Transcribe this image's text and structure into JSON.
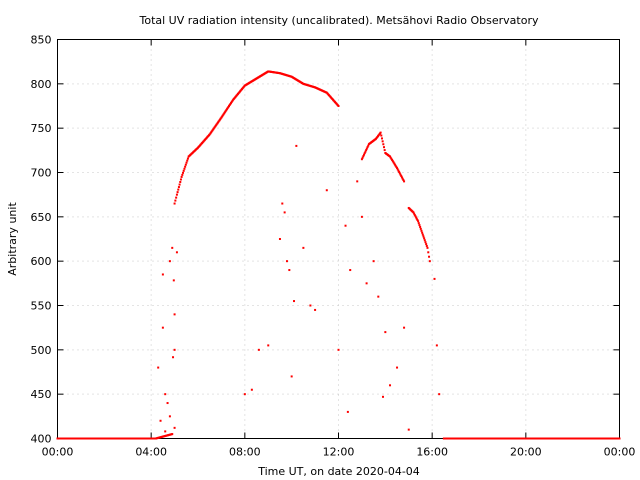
{
  "chart_data": {
    "type": "scatter",
    "title": "Total UV radiation intensity (uncalibrated). Metsähovi Radio Observatory",
    "xlabel": "Time UT, on date 2020-04-04",
    "ylabel": "Arbitrary unit",
    "x_unit": "hours UT",
    "xlim": [
      0,
      24
    ],
    "ylim": [
      400,
      850
    ],
    "x_ticks": [
      0,
      4,
      8,
      12,
      16,
      20,
      24
    ],
    "x_tick_labels": [
      "00:00",
      "04:00",
      "08:00",
      "12:00",
      "16:00",
      "20:00",
      "00:00"
    ],
    "y_ticks": [
      400,
      450,
      500,
      550,
      600,
      650,
      700,
      750,
      800,
      850
    ],
    "y_tick_labels": [
      "400",
      "450",
      "500",
      "550",
      "600",
      "650",
      "700",
      "750",
      "800",
      "850"
    ],
    "grid": true,
    "legend": "none",
    "series_color": "#ff0000",
    "main_curve": {
      "x": [
        0.0,
        4.2,
        4.9,
        5.0,
        5.1,
        5.3,
        5.6,
        6.0,
        6.5,
        7.0,
        7.5,
        8.0,
        8.5,
        9.0,
        9.5,
        10.0,
        10.5,
        11.0,
        11.5,
        12.0
      ],
      "y": [
        400,
        400,
        405,
        665,
        675,
        695,
        718,
        728,
        743,
        762,
        782,
        798,
        806,
        814,
        812,
        808,
        800,
        796,
        790,
        775
      ]
    },
    "segment_2": {
      "x": [
        13.0,
        13.3,
        13.6,
        13.8,
        14.0,
        14.2,
        14.5,
        14.8
      ],
      "y": [
        715,
        732,
        738,
        745,
        722,
        718,
        705,
        690
      ]
    },
    "segment_3": {
      "x": [
        15.0,
        15.2,
        15.4,
        15.6,
        15.8,
        15.9
      ],
      "y": [
        660,
        655,
        645,
        630,
        615,
        600
      ]
    },
    "scatter_points": {
      "x": [
        4.3,
        4.4,
        4.5,
        4.5,
        4.6,
        4.7,
        4.8,
        4.9,
        5.0,
        5.0,
        5.1,
        8.0,
        8.3,
        8.6,
        9.0,
        9.5,
        9.6,
        9.7,
        9.9,
        10.0,
        10.2,
        10.5,
        10.8,
        11.0,
        11.5,
        12.0,
        12.3,
        12.5,
        12.8,
        13.0,
        13.2,
        13.5,
        13.7,
        14.0,
        14.2,
        14.5,
        14.8,
        15.0,
        16.1,
        16.2,
        16.3,
        4.6,
        4.8,
        5.0,
        9.8,
        10.1,
        12.4,
        13.9
      ],
      "y": [
        480,
        420,
        525,
        585,
        450,
        440,
        600,
        615,
        540,
        500,
        610,
        450,
        455,
        500,
        505,
        625,
        665,
        655,
        590,
        470,
        730,
        615,
        550,
        545,
        680,
        500,
        640,
        590,
        690,
        650,
        575,
        600,
        560,
        520,
        460,
        480,
        525,
        410,
        580,
        505,
        450,
        408,
        425,
        412,
        600,
        555,
        430,
        447
      ]
    }
  }
}
